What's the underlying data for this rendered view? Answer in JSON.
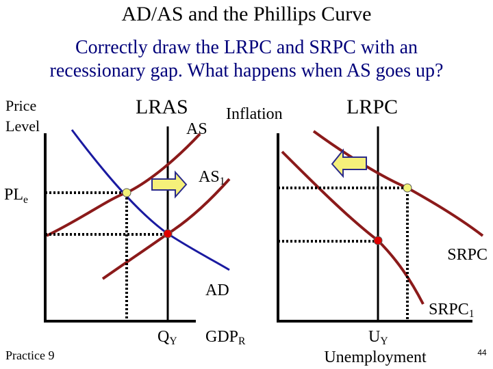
{
  "header": {
    "title": "AD/AS and the Phillips Curve",
    "subtitle": [
      "Correctly draw the LRPC and SRPC with an",
      "recessionary gap. What happens when AS goes up?"
    ]
  },
  "left_graph": {
    "y_label": [
      "Price",
      "Level"
    ],
    "lras": "LRAS",
    "as": "AS",
    "as1": {
      "main": "AS",
      "sub": "1"
    },
    "ple": {
      "main": "PL",
      "sub": "e"
    },
    "ad": "AD",
    "qy": {
      "main": "Q",
      "sub": "Y"
    },
    "x_label": {
      "main": "GDP",
      "sub": "R"
    }
  },
  "right_graph": {
    "y_label": "Inflation",
    "lrpc": "LRPC",
    "srpc": "SRPC",
    "srpc1": {
      "main": "SRPC",
      "sub": "1"
    },
    "uy": {
      "main": "U",
      "sub": "Y"
    },
    "x_label": "Unemployment"
  },
  "footer": {
    "note": "Practice 9",
    "page": "44"
  }
}
